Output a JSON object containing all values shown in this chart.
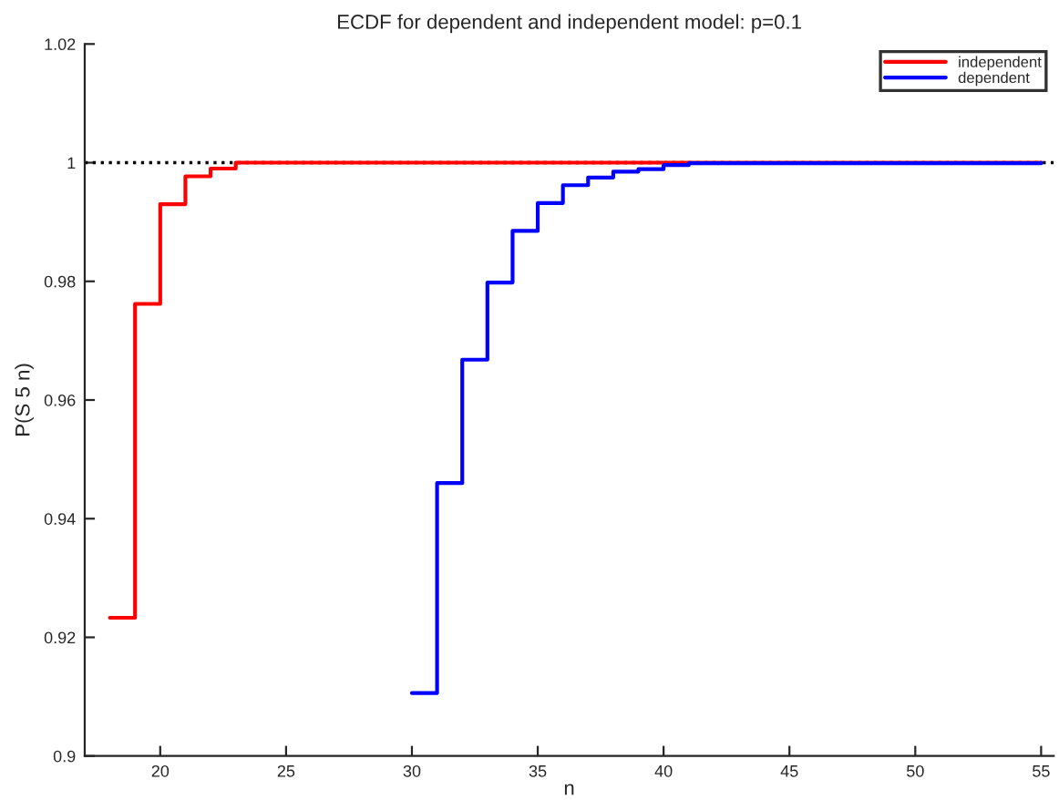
{
  "chart_data": {
    "type": "step",
    "title": "ECDF for dependent and independent model: p=0.1",
    "xlabel": "n",
    "ylabel": "P(S 5 n)",
    "series": [
      {
        "name": "independent",
        "color": "#ff0000",
        "x": [
          18,
          19,
          20,
          21,
          22,
          23,
          55
        ],
        "values": [
          0.9233,
          0.9762,
          0.993,
          0.9977,
          0.999,
          1.0,
          1.0
        ]
      },
      {
        "name": "dependent",
        "color": "#0000ff",
        "x": [
          30,
          31,
          32,
          33,
          34,
          35,
          36,
          37,
          38,
          39,
          40,
          41,
          55
        ],
        "values": [
          0.9106,
          0.946,
          0.9668,
          0.9798,
          0.9885,
          0.9932,
          0.9962,
          0.9975,
          0.9985,
          0.9989,
          0.9996,
          0.9999,
          1.0
        ]
      }
    ],
    "ref_lines": [
      {
        "axis": "y",
        "value": 1,
        "color": "#000000",
        "line_style": "dotted"
      }
    ],
    "xlim": [
      17,
      55.5
    ],
    "ylim": [
      0.9,
      1.02
    ],
    "xticks": [
      20,
      25,
      30,
      35,
      40,
      45,
      50,
      55
    ],
    "yticks": [
      0.9,
      0.92,
      0.94,
      0.96,
      0.98,
      1,
      1.02
    ],
    "legend": "top right",
    "grid": false
  }
}
